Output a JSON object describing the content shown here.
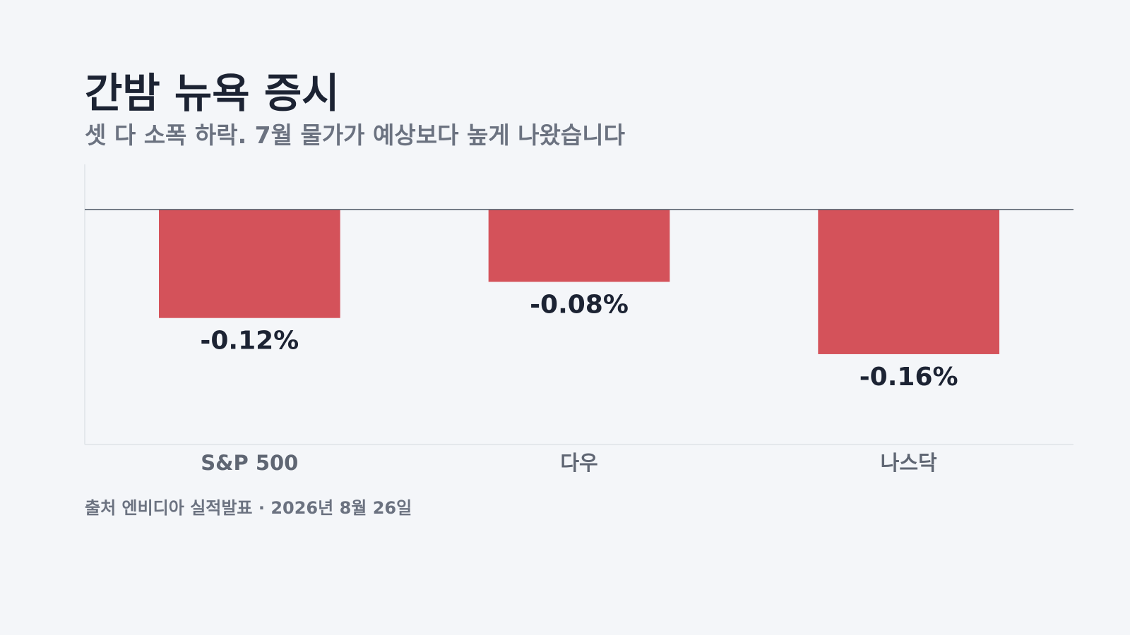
{
  "chart_data": {
    "type": "bar",
    "title": "간밤 뉴욕 증시",
    "subtitle": "셋 다 소폭 하락. 7월 물가가 예상보다 높게 나왔습니다",
    "categories": [
      "S&P 500",
      "다우",
      "나스닥"
    ],
    "values": [
      -0.12,
      -0.08,
      -0.16
    ],
    "value_labels": [
      "-0.12%",
      "-0.08%",
      "-0.16%"
    ],
    "color": "#d4525a",
    "ylim": [
      -0.26,
      0.05
    ],
    "source": "출처 엔비디아 실적발표 · 2026년 8월 26일"
  }
}
